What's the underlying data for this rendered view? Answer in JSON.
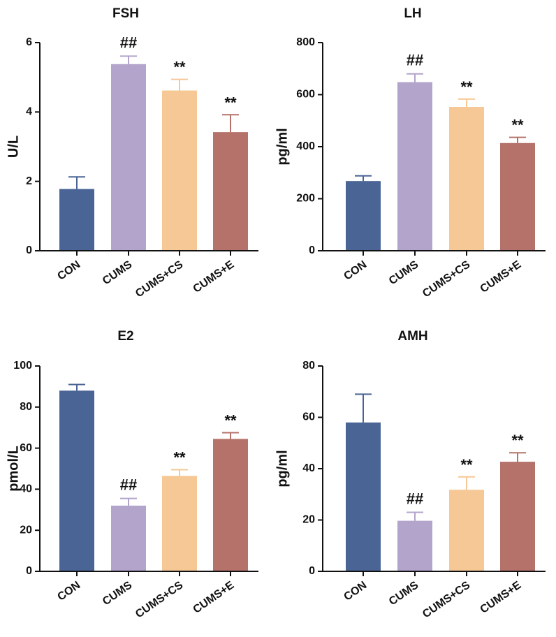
{
  "chart_data": [
    {
      "type": "bar",
      "title": "FSH",
      "xlabel": "",
      "ylabel": "U/L",
      "ylim": [
        0,
        6
      ],
      "yticks": [
        0,
        2,
        4,
        6
      ],
      "yticklabels": [
        "0",
        "2",
        "4",
        "6"
      ],
      "categories": [
        "CON",
        "CUMS",
        "CUMS+CS",
        "CUMS+E"
      ],
      "values": [
        1.78,
        5.38,
        4.62,
        3.42
      ],
      "errors": [
        0.35,
        0.23,
        0.32,
        0.5
      ],
      "annotations": [
        "",
        "##",
        "**",
        "**"
      ]
    },
    {
      "type": "bar",
      "title": "LH",
      "xlabel": "",
      "ylabel": "pg/ml",
      "ylim": [
        0,
        800
      ],
      "yticks": [
        0,
        200,
        400,
        600,
        800
      ],
      "yticklabels": [
        "0",
        "200",
        "400",
        "600",
        "800"
      ],
      "categories": [
        "CON",
        "CUMS",
        "CUMS+CS",
        "CUMS+E"
      ],
      "values": [
        268,
        648,
        553,
        414
      ],
      "errors": [
        20,
        32,
        30,
        22
      ],
      "annotations": [
        "",
        "##",
        "**",
        "**"
      ]
    },
    {
      "type": "bar",
      "title": "E2",
      "xlabel": "",
      "ylabel": "pmol/L",
      "ylim": [
        0,
        100
      ],
      "yticks": [
        0,
        20,
        40,
        60,
        80,
        100
      ],
      "yticklabels": [
        "0",
        "20",
        "40",
        "60",
        "80",
        "100"
      ],
      "categories": [
        "CON",
        "CUMS",
        "CUMS+CS",
        "CUMS+E"
      ],
      "values": [
        88,
        32,
        46.5,
        64.5
      ],
      "errors": [
        3,
        3.5,
        3,
        3
      ],
      "annotations": [
        "",
        "##",
        "**",
        "**"
      ]
    },
    {
      "type": "bar",
      "title": "AMH",
      "xlabel": "",
      "ylabel": "pg/ml",
      "ylim": [
        0,
        80
      ],
      "yticks": [
        0,
        20,
        40,
        60,
        80
      ],
      "yticklabels": [
        "0",
        "20",
        "40",
        "60",
        "80"
      ],
      "categories": [
        "CON",
        "CUMS",
        "CUMS+CS",
        "CUMS+E"
      ],
      "values": [
        58,
        19.7,
        31.8,
        42.7
      ],
      "errors": [
        11,
        3.3,
        5,
        3.5
      ],
      "annotations": [
        "",
        "##",
        "**",
        "**"
      ]
    }
  ],
  "colors": {
    "CON": "#4a6595",
    "CUMS": "#b3a4cb",
    "CUMS+CS": "#f6c896",
    "CUMS+E": "#b4726a"
  }
}
